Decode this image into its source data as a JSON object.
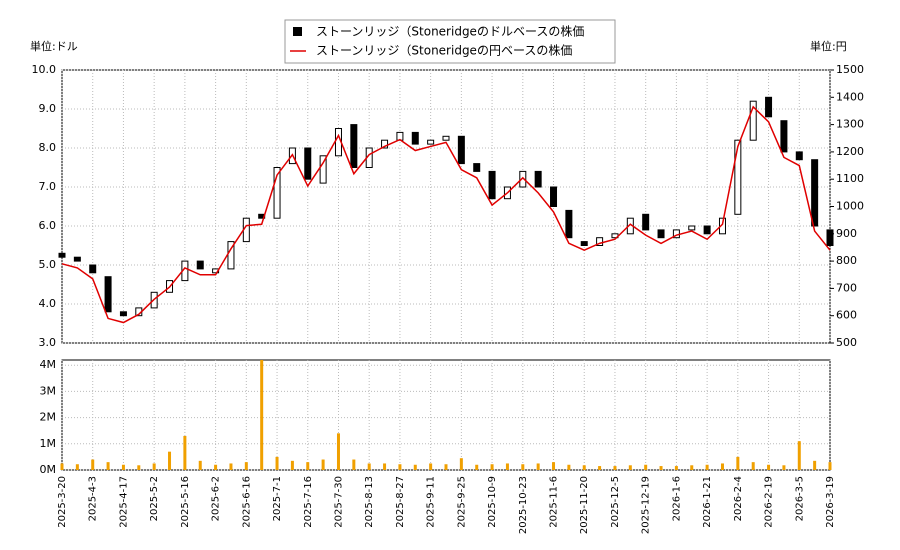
{
  "chart_data": {
    "type": "candlestick",
    "y_unit": "単位:ドル",
    "y2_unit": "単位:円",
    "categories": [
      "2025-3-20",
      null,
      "2025-4-3",
      null,
      "2025-4-17",
      null,
      "2025-5-2",
      null,
      "2025-5-16",
      null,
      "2025-6-2",
      null,
      "2025-6-16",
      null,
      "2025-7-1",
      null,
      "2025-7-16",
      null,
      "2025-7-30",
      null,
      "2025-8-13",
      null,
      "2025-8-27",
      null,
      "2025-9-11",
      null,
      "2025-9-25",
      null,
      "2025-10-9",
      null,
      "2025-10-23",
      null,
      "2025-11-6",
      null,
      "2025-11-20",
      null,
      "2025-12-5",
      null,
      "2025-12-19",
      null,
      "2026-1-6",
      null,
      "2026-1-21",
      null,
      "2026-2-4",
      null,
      "2026-2-19",
      null,
      "2026-3-5",
      null,
      "2026-3-19"
    ],
    "series": [
      {
        "name": "ストーンリッジ（Stoneridgeのドルベースの株価",
        "color": "#000000",
        "open": [
          5.3,
          5.2,
          5.0,
          4.7,
          3.8,
          3.7,
          3.9,
          4.3,
          4.6,
          5.1,
          4.8,
          4.9,
          5.6,
          6.3,
          6.2,
          7.6,
          8.0,
          7.1,
          7.8,
          8.6,
          7.5,
          8.0,
          8.2,
          8.4,
          8.1,
          8.2,
          8.3,
          7.6,
          7.4,
          6.7,
          7.0,
          7.4,
          7.0,
          6.4,
          5.6,
          5.5,
          5.7,
          5.8,
          6.3,
          5.9,
          5.7,
          5.9,
          6.0,
          5.8,
          6.3,
          8.2,
          9.3,
          8.7,
          7.9,
          7.7,
          5.9
        ],
        "values": [
          5.2,
          5.1,
          4.8,
          3.8,
          3.7,
          3.9,
          4.3,
          4.6,
          5.1,
          4.9,
          4.9,
          5.6,
          6.2,
          6.2,
          7.5,
          8.0,
          7.2,
          7.8,
          8.5,
          7.5,
          8.0,
          8.2,
          8.4,
          8.1,
          8.2,
          8.3,
          7.6,
          7.4,
          6.7,
          7.0,
          7.4,
          7.0,
          6.5,
          5.7,
          5.5,
          5.7,
          5.8,
          6.2,
          5.9,
          5.7,
          5.9,
          6.0,
          5.8,
          6.2,
          8.2,
          9.2,
          8.8,
          7.9,
          7.7,
          6.0,
          5.5
        ]
      },
      {
        "name": "ストーンリッジ（Stoneridgeの円ベースの株価",
        "color": "#e00000",
        "axis": "y2",
        "values": [
          790,
          775,
          735,
          590,
          575,
          605,
          660,
          705,
          775,
          750,
          750,
          845,
          930,
          935,
          1115,
          1190,
          1075,
          1160,
          1260,
          1120,
          1190,
          1220,
          1245,
          1205,
          1220,
          1235,
          1135,
          1105,
          1005,
          1050,
          1105,
          1050,
          980,
          865,
          840,
          865,
          880,
          935,
          895,
          865,
          895,
          910,
          880,
          935,
          1220,
          1365,
          1310,
          1180,
          1150,
          910,
          840
        ]
      }
    ],
    "ylim": [
      3.0,
      10.0
    ],
    "yticks": [
      {
        "value": 3,
        "label": "3.0"
      },
      {
        "value": 4,
        "label": "4.0"
      },
      {
        "value": 5,
        "label": "5.0"
      },
      {
        "value": 6,
        "label": "6.0"
      },
      {
        "value": 7,
        "label": "7.0"
      },
      {
        "value": 8,
        "label": "8.0"
      },
      {
        "value": 9,
        "label": "9.0"
      },
      {
        "value": 10,
        "label": "10.0"
      }
    ],
    "y2lim": [
      500,
      1500
    ],
    "y2ticks": [
      500,
      600,
      700,
      800,
      900,
      1000,
      1100,
      1200,
      1300,
      1400,
      1500
    ],
    "grid": true,
    "volume": {
      "color": "#f0a000",
      "values": [
        250000,
        220000,
        400000,
        300000,
        200000,
        180000,
        250000,
        700000,
        1300000,
        350000,
        200000,
        250000,
        300000,
        4200000,
        500000,
        350000,
        300000,
        400000,
        1400000,
        400000,
        250000,
        250000,
        220000,
        200000,
        250000,
        220000,
        450000,
        200000,
        220000,
        250000,
        220000,
        250000,
        300000,
        200000,
        180000,
        150000,
        150000,
        180000,
        200000,
        150000,
        150000,
        180000,
        200000,
        250000,
        500000,
        300000,
        200000,
        180000,
        1100000,
        350000,
        300000
      ],
      "ylim": [
        0,
        4200000
      ],
      "yticks": [
        {
          "value": 0,
          "label": "0M"
        },
        {
          "value": 1000000,
          "label": "1M"
        },
        {
          "value": 2000000,
          "label": "2M"
        },
        {
          "value": 3000000,
          "label": "3M"
        },
        {
          "value": 4000000,
          "label": "4M"
        }
      ]
    }
  }
}
